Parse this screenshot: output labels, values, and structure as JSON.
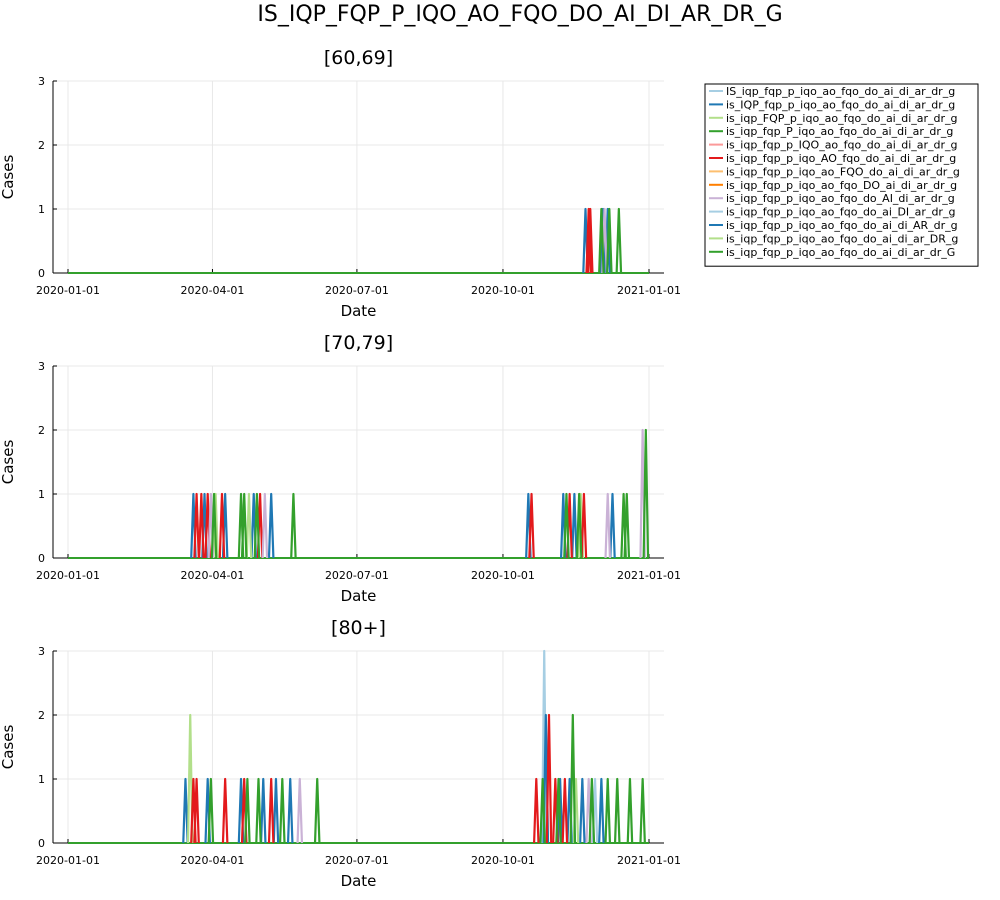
{
  "figure": {
    "title": "IS_IQP_FQP_P_IQO_AO_FQO_DO_AI_DI_AR_DR_G"
  },
  "legend": {
    "placement": "outside-right-top",
    "entries": [
      {
        "label": "IS_iqp_fqp_p_iqo_ao_fqo_do_ai_di_ar_dr_g",
        "color": "#a6cee3"
      },
      {
        "label": "is_IQP_fqp_p_iqo_ao_fqo_do_ai_di_ar_dr_g",
        "color": "#1f78b4"
      },
      {
        "label": "is_iqp_FQP_p_iqo_ao_fqo_do_ai_di_ar_dr_g",
        "color": "#b2df8a"
      },
      {
        "label": "is_iqp_fqp_P_iqo_ao_fqo_do_ai_di_ar_dr_g",
        "color": "#33a02c"
      },
      {
        "label": "is_iqp_fqp_p_IQO_ao_fqo_do_ai_di_ar_dr_g",
        "color": "#fb9a99"
      },
      {
        "label": "is_iqp_fqp_p_iqo_AO_fqo_do_ai_di_ar_dr_g",
        "color": "#e31a1c"
      },
      {
        "label": "is_iqp_fqp_p_iqo_ao_FQO_do_ai_di_ar_dr_g",
        "color": "#fdbf6f"
      },
      {
        "label": "is_iqp_fqp_p_iqo_ao_fqo_DO_ai_di_ar_dr_g",
        "color": "#ff7f00"
      },
      {
        "label": "is_iqp_fqp_p_iqo_ao_fqo_do_AI_di_ar_dr_g",
        "color": "#cab2d6"
      },
      {
        "label": "is_iqp_fqp_p_iqo_ao_fqo_do_ai_DI_ar_dr_g",
        "color": "#a6cee3"
      },
      {
        "label": "is_iqp_fqp_p_iqo_ao_fqo_do_ai_di_AR_dr_g",
        "color": "#1f78b4"
      },
      {
        "label": "is_iqp_fqp_p_iqo_ao_fqo_do_ai_di_ar_DR_g",
        "color": "#b2df8a"
      },
      {
        "label": "is_iqp_fqp_p_iqo_ao_fqo_do_ai_di_ar_dr_G",
        "color": "#33a02c"
      }
    ]
  },
  "chart_data": [
    {
      "type": "line",
      "title": "[60,69]",
      "xlabel": "Date",
      "ylabel": "Cases",
      "xlim": [
        "2020-01-01",
        "2021-01-01"
      ],
      "ylim": [
        0,
        3
      ],
      "xticks": [
        "2020-01-01",
        "2020-04-01",
        "2020-07-01",
        "2020-10-01",
        "2021-01-01"
      ],
      "yticks": [
        0,
        1,
        2,
        3
      ],
      "grid": true,
      "series": [
        {
          "name": "is_IQP_fqp_p_iqo_ao_fqo_do_ai_di_ar_dr_g",
          "color": "#1f78b4",
          "spikes": [
            [
              "2020-11-22",
              1
            ],
            [
              "2020-12-03",
              1
            ],
            [
              "2020-12-06",
              1
            ]
          ]
        },
        {
          "name": "is_iqp_fqp_p_iqo_AO_fqo_do_ai_di_ar_dr_g",
          "color": "#e31a1c",
          "spikes": [
            [
              "2020-11-24",
              1
            ],
            [
              "2020-11-25",
              1
            ]
          ]
        },
        {
          "name": "is_iqp_fqp_p_iqo_ao_fqo_do_AI_di_ar_dr_g",
          "color": "#cab2d6",
          "spikes": [
            [
              "2020-12-04",
              1
            ]
          ]
        },
        {
          "name": "is_iqp_fqp_p_iqo_ao_fqo_do_ai_di_ar_dr_G",
          "color": "#33a02c",
          "spikes": [
            [
              "2020-12-02",
              1
            ],
            [
              "2020-12-07",
              1
            ],
            [
              "2020-12-13",
              1
            ]
          ]
        }
      ]
    },
    {
      "type": "line",
      "title": "[70,79]",
      "xlabel": "Date",
      "ylabel": "Cases",
      "xlim": [
        "2020-01-01",
        "2021-01-01"
      ],
      "ylim": [
        0,
        3
      ],
      "xticks": [
        "2020-01-01",
        "2020-04-01",
        "2020-07-01",
        "2020-10-01",
        "2021-01-01"
      ],
      "yticks": [
        0,
        1,
        2,
        3
      ],
      "grid": true,
      "series": [
        {
          "name": "is_IQP_fqp_p_iqo_ao_fqo_do_ai_di_ar_dr_g",
          "color": "#1f78b4",
          "spikes": [
            [
              "2020-03-20",
              1
            ],
            [
              "2020-03-27",
              1
            ],
            [
              "2020-04-09",
              1
            ],
            [
              "2020-04-27",
              1
            ],
            [
              "2020-05-08",
              1
            ],
            [
              "2020-10-17",
              1
            ],
            [
              "2020-11-08",
              1
            ],
            [
              "2020-11-15",
              1
            ],
            [
              "2020-12-09",
              1
            ]
          ]
        },
        {
          "name": "is_iqp_FQP_p_iqo_ao_fqo_do_ai_di_ar_dr_g",
          "color": "#b2df8a",
          "spikes": [
            [
              "2020-04-03",
              1
            ],
            [
              "2020-04-24",
              1
            ],
            [
              "2020-11-19",
              1
            ]
          ]
        },
        {
          "name": "is_iqp_fqp_p_iqo_AO_fqo_do_ai_di_ar_dr_g",
          "color": "#e31a1c",
          "spikes": [
            [
              "2020-03-22",
              1
            ],
            [
              "2020-03-25",
              1
            ],
            [
              "2020-03-29",
              1
            ],
            [
              "2020-04-07",
              1
            ],
            [
              "2020-05-01",
              1
            ],
            [
              "2020-10-19",
              1
            ],
            [
              "2020-11-12",
              1
            ],
            [
              "2020-11-21",
              1
            ]
          ]
        },
        {
          "name": "is_iqp_fqp_p_iqo_ao_fqo_do_AI_di_ar_dr_g",
          "color": "#cab2d6",
          "spikes": [
            [
              "2020-03-31",
              1
            ],
            [
              "2020-05-04",
              1
            ],
            [
              "2020-12-06",
              1
            ],
            [
              "2020-12-28",
              2
            ]
          ]
        },
        {
          "name": "is_iqp_fqp_p_iqo_ao_fqo_do_ai_di_ar_dr_G",
          "color": "#33a02c",
          "spikes": [
            [
              "2020-04-02",
              1
            ],
            [
              "2020-04-19",
              1
            ],
            [
              "2020-04-21",
              1
            ],
            [
              "2020-04-29",
              1
            ],
            [
              "2020-05-22",
              1
            ],
            [
              "2020-11-10",
              1
            ],
            [
              "2020-11-18",
              1
            ],
            [
              "2020-12-16",
              1
            ],
            [
              "2020-12-18",
              1
            ],
            [
              "2020-12-30",
              2
            ]
          ]
        }
      ]
    },
    {
      "type": "line",
      "title": "[80+]",
      "xlabel": "Date",
      "ylabel": "Cases",
      "xlim": [
        "2020-01-01",
        "2021-01-01"
      ],
      "ylim": [
        0,
        3
      ],
      "xticks": [
        "2020-01-01",
        "2020-04-01",
        "2020-07-01",
        "2020-10-01",
        "2021-01-01"
      ],
      "yticks": [
        0,
        1,
        2,
        3
      ],
      "grid": true,
      "series": [
        {
          "name": "IS_iqp_fqp_p_iqo_ao_fqo_do_ai_di_ar_dr_g",
          "color": "#a6cee3",
          "spikes": [
            [
              "2020-10-27",
              3
            ],
            [
              "2020-11-28",
              1
            ]
          ]
        },
        {
          "name": "is_IQP_fqp_p_iqo_ao_fqo_do_ai_di_ar_dr_g",
          "color": "#1f78b4",
          "spikes": [
            [
              "2020-03-15",
              1
            ],
            [
              "2020-03-29",
              1
            ],
            [
              "2020-04-19",
              1
            ],
            [
              "2020-05-03",
              1
            ],
            [
              "2020-05-11",
              1
            ],
            [
              "2020-05-20",
              1
            ],
            [
              "2020-10-28",
              2
            ],
            [
              "2020-11-06",
              1
            ],
            [
              "2020-11-12",
              1
            ],
            [
              "2020-11-20",
              1
            ],
            [
              "2020-12-02",
              1
            ]
          ]
        },
        {
          "name": "is_iqp_FQP_p_iqo_ao_fqo_do_ai_di_ar_dr_g",
          "color": "#b2df8a",
          "spikes": [
            [
              "2020-03-18",
              2
            ],
            [
              "2020-11-16",
              1
            ]
          ]
        },
        {
          "name": "is_iqp_fqp_p_iqo_AO_fqo_do_ai_di_ar_dr_g",
          "color": "#e31a1c",
          "spikes": [
            [
              "2020-03-20",
              1
            ],
            [
              "2020-03-22",
              1
            ],
            [
              "2020-04-09",
              1
            ],
            [
              "2020-04-21",
              1
            ],
            [
              "2020-05-08",
              1
            ],
            [
              "2020-10-22",
              1
            ],
            [
              "2020-10-30",
              2
            ],
            [
              "2020-11-03",
              1
            ],
            [
              "2020-11-09",
              1
            ]
          ]
        },
        {
          "name": "is_iqp_fqp_p_iqo_ao_fqo_do_AI_di_ar_dr_g",
          "color": "#cab2d6",
          "spikes": [
            [
              "2020-05-26",
              1
            ],
            [
              "2020-11-24",
              1
            ]
          ]
        },
        {
          "name": "is_iqp_fqp_p_iqo_ao_fqo_do_ai_di_ar_dr_G",
          "color": "#33a02c",
          "spikes": [
            [
              "2020-03-31",
              1
            ],
            [
              "2020-04-23",
              1
            ],
            [
              "2020-04-30",
              1
            ],
            [
              "2020-05-15",
              1
            ],
            [
              "2020-06-06",
              1
            ],
            [
              "2020-10-26",
              1
            ],
            [
              "2020-11-05",
              1
            ],
            [
              "2020-11-14",
              2
            ],
            [
              "2020-11-26",
              1
            ],
            [
              "2020-12-06",
              1
            ],
            [
              "2020-12-12",
              1
            ],
            [
              "2020-12-20",
              1
            ],
            [
              "2020-12-28",
              1
            ]
          ]
        }
      ]
    }
  ]
}
